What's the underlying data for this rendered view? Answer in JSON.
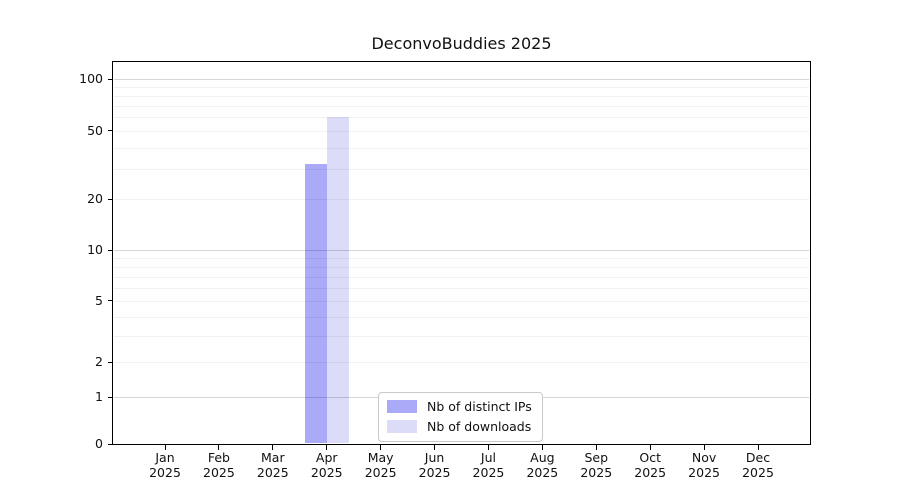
{
  "figure": {
    "background": "#ffffff"
  },
  "chart_data": {
    "type": "bar",
    "title": "DeconvoBuddies 2025",
    "xlabel": "",
    "ylabel": "",
    "categories": [
      {
        "month": "Jan",
        "year": "2025"
      },
      {
        "month": "Feb",
        "year": "2025"
      },
      {
        "month": "Mar",
        "year": "2025"
      },
      {
        "month": "Apr",
        "year": "2025"
      },
      {
        "month": "May",
        "year": "2025"
      },
      {
        "month": "Jun",
        "year": "2025"
      },
      {
        "month": "Jul",
        "year": "2025"
      },
      {
        "month": "Aug",
        "year": "2025"
      },
      {
        "month": "Sep",
        "year": "2025"
      },
      {
        "month": "Oct",
        "year": "2025"
      },
      {
        "month": "Nov",
        "year": "2025"
      },
      {
        "month": "Dec",
        "year": "2025"
      }
    ],
    "series": [
      {
        "name": "Nb of distinct IPs",
        "color": "#aaaaf8",
        "values": [
          null,
          null,
          null,
          32,
          null,
          null,
          null,
          null,
          null,
          null,
          null,
          null
        ]
      },
      {
        "name": "Nb of downloads",
        "color": "#dcdcf9",
        "values": [
          null,
          null,
          null,
          60,
          null,
          null,
          null,
          null,
          null,
          null,
          null,
          null
        ]
      }
    ],
    "yscale": "asinh",
    "ylim": [
      0,
      126
    ],
    "yticks": [
      0,
      1,
      2,
      5,
      10,
      20,
      50,
      100
    ],
    "major_gridlines": [
      1,
      10,
      100
    ],
    "minor_gridlines": [
      2,
      3,
      4,
      5,
      6,
      7,
      8,
      9,
      20,
      30,
      40,
      50,
      60,
      70,
      80,
      90
    ],
    "grid": true,
    "legend_position": "lower center",
    "grid_major_color": "#d9d9d9",
    "grid_minor_color": "#f0f0f0",
    "axis_color": "#000000"
  }
}
